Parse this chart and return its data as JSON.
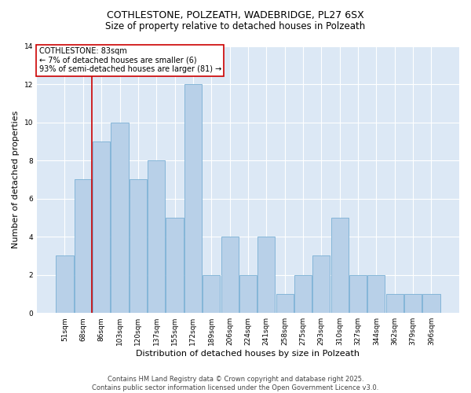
{
  "title1": "COTHLESTONE, POLZEATH, WADEBRIDGE, PL27 6SX",
  "title2": "Size of property relative to detached houses in Polzeath",
  "xlabel": "Distribution of detached houses by size in Polzeath",
  "ylabel": "Number of detached properties",
  "categories": [
    "51sqm",
    "68sqm",
    "86sqm",
    "103sqm",
    "120sqm",
    "137sqm",
    "155sqm",
    "172sqm",
    "189sqm",
    "206sqm",
    "224sqm",
    "241sqm",
    "258sqm",
    "275sqm",
    "293sqm",
    "310sqm",
    "327sqm",
    "344sqm",
    "362sqm",
    "379sqm",
    "396sqm"
  ],
  "values": [
    3,
    7,
    9,
    10,
    7,
    8,
    5,
    12,
    2,
    4,
    2,
    4,
    1,
    2,
    3,
    5,
    2,
    2,
    1,
    1,
    1
  ],
  "bar_color": "#b8d0e8",
  "bar_edge_color": "#7aafd4",
  "highlight_color": "#cc0000",
  "annotation_text": "COTHLESTONE: 83sqm\n← 7% of detached houses are smaller (6)\n93% of semi-detached houses are larger (81) →",
  "annotation_box_color": "#ffffff",
  "annotation_box_edge": "#cc0000",
  "ylim": [
    0,
    14
  ],
  "yticks": [
    0,
    2,
    4,
    6,
    8,
    10,
    12,
    14
  ],
  "plot_bg_color": "#dce8f5",
  "footer": "Contains HM Land Registry data © Crown copyright and database right 2025.\nContains public sector information licensed under the Open Government Licence v3.0.",
  "title1_fontsize": 9,
  "title2_fontsize": 8.5,
  "xlabel_fontsize": 8,
  "ylabel_fontsize": 8,
  "tick_fontsize": 6.5,
  "annotation_fontsize": 7,
  "footer_fontsize": 6
}
